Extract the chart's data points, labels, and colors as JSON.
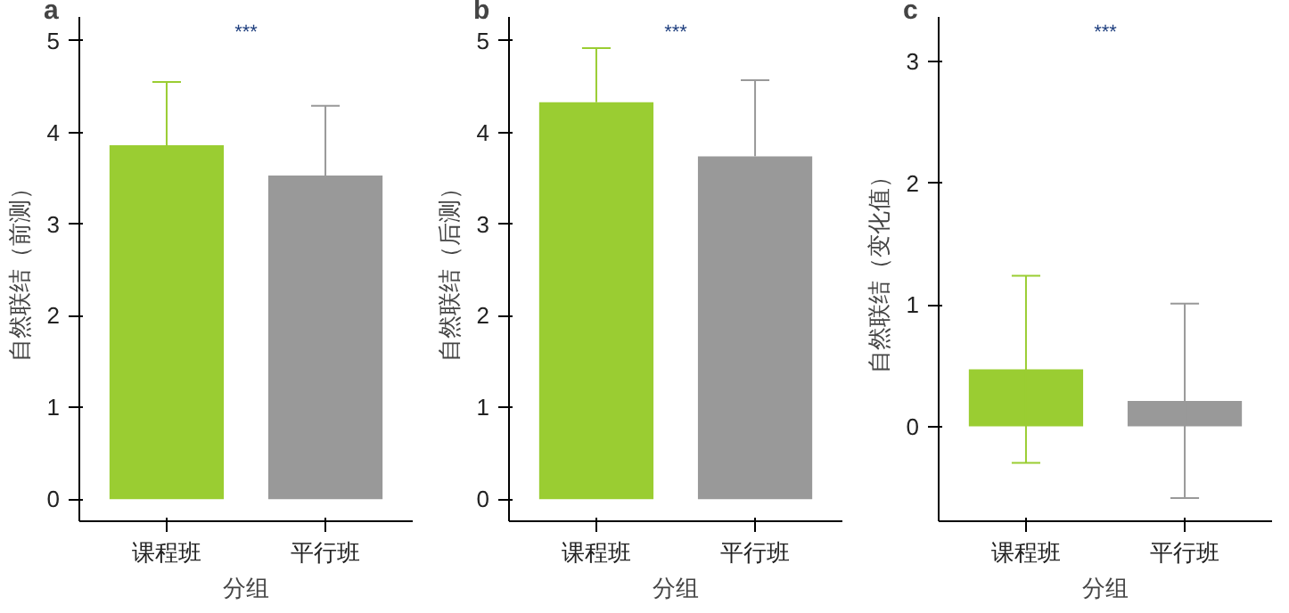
{
  "chart_data": [
    {
      "type": "bar",
      "title": "a",
      "xlabel": "分组",
      "ylabel": "自然联结（前测）",
      "categories": [
        "课程班",
        "平行班"
      ],
      "values": [
        3.86,
        3.53
      ],
      "colors": [
        "#9acd32",
        "#999999"
      ],
      "errors": [
        [
          3.86,
          4.55
        ],
        [
          3.53,
          4.29
        ]
      ],
      "ylim": [
        -0.24,
        5.26
      ],
      "yticks": [
        0,
        1,
        2,
        3,
        4,
        5
      ],
      "grid": false,
      "annotations": [
        "***"
      ]
    },
    {
      "type": "bar",
      "title": "b",
      "xlabel": "分组",
      "ylabel": "自然联结（后测）",
      "categories": [
        "课程班",
        "平行班"
      ],
      "values": [
        4.33,
        3.74
      ],
      "colors": [
        "#9acd32",
        "#999999"
      ],
      "errors": [
        [
          4.33,
          4.92
        ],
        [
          3.74,
          4.57
        ]
      ],
      "ylim": [
        -0.24,
        5.26
      ],
      "yticks": [
        0,
        1,
        2,
        3,
        4,
        5
      ],
      "grid": false,
      "annotations": [
        "***"
      ]
    },
    {
      "type": "bar",
      "title": "c",
      "xlabel": "分组",
      "ylabel": "自然联结（变化值）",
      "categories": [
        "课程班",
        "平行班"
      ],
      "values": [
        0.47,
        0.21
      ],
      "colors": [
        "#9acd32",
        "#999999"
      ],
      "errors": [
        0.77,
        0.8
      ],
      "ylim": [
        -0.78,
        3.37
      ],
      "yticks": [
        0,
        1,
        2,
        3
      ],
      "grid": false,
      "annotations": [
        "***"
      ]
    }
  ]
}
